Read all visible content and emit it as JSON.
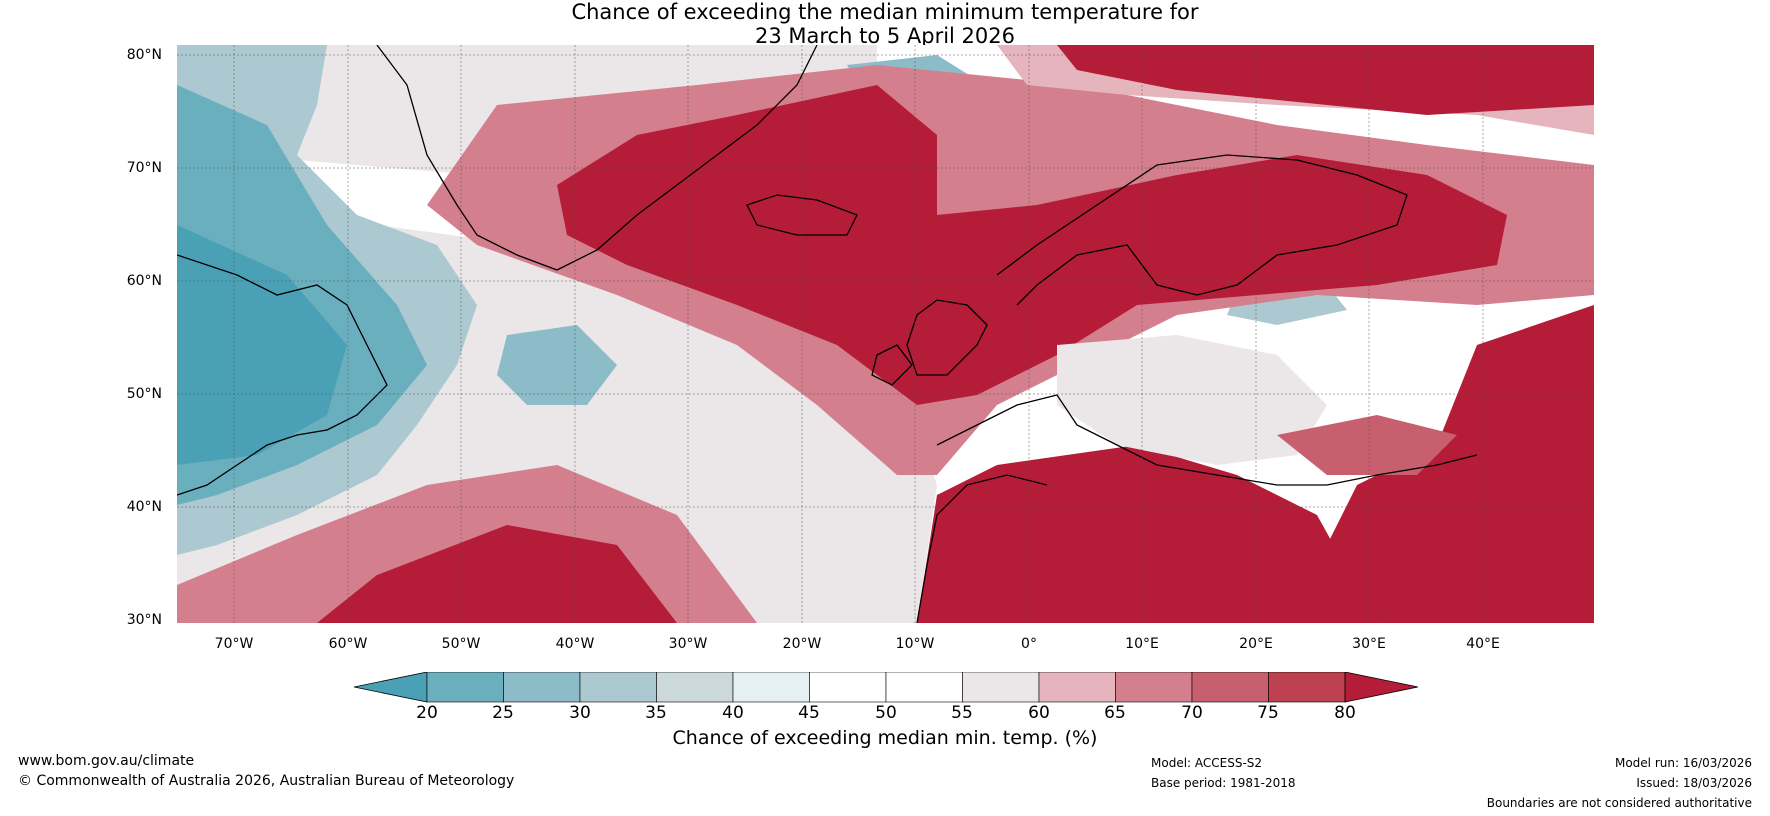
{
  "title": {
    "line1": "Chance of exceeding the median minimum temperature for",
    "line2": "23 March to 5 April 2026"
  },
  "map": {
    "lat_labels": [
      "80°N",
      "70°N",
      "60°N",
      "50°N",
      "40°N",
      "30°N"
    ],
    "lon_labels": [
      "70°W",
      "60°W",
      "50°W",
      "40°W",
      "30°W",
      "20°W",
      "10°W",
      "0°",
      "10°E",
      "20°E",
      "30°E",
      "40°E"
    ]
  },
  "colorbar": {
    "ticks": [
      "20",
      "25",
      "30",
      "35",
      "40",
      "45",
      "50",
      "55",
      "60",
      "65",
      "70",
      "75",
      "80"
    ],
    "label": "Chance of exceeding median min. temp. (%)",
    "colors": [
      "#4aa0b5",
      "#6aafbe",
      "#8bbcc8",
      "#acc9d1",
      "#cbd8dc",
      "#e6eff1",
      "#ffffff",
      "#ffffff",
      "#ebe6e8",
      "#e5b4bc",
      "#d47f8d",
      "#c85f6f",
      "#be4152",
      "#b41c38"
    ]
  },
  "footer": {
    "url": "www.bom.gov.au/climate",
    "copyright": "© Commonwealth of Australia 2026, Australian Bureau of Meteorology",
    "model": "Model: ACCESS-S2",
    "base_period": "Base period: 1981-2018",
    "model_run": "Model run: 16/03/2026",
    "issued": "Issued: 18/03/2026",
    "disclaimer": "Boundaries are not considered authoritative"
  }
}
